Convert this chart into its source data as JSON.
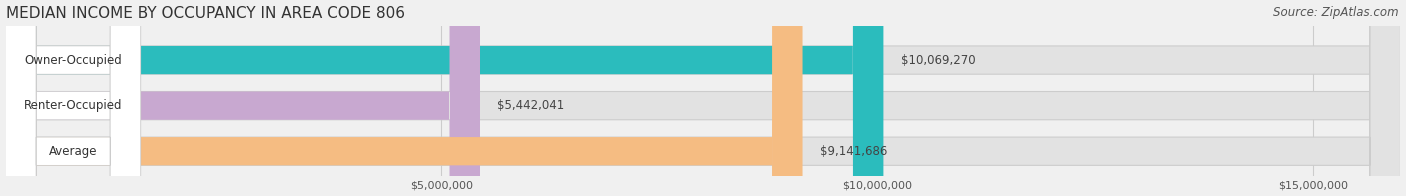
{
  "title": "MEDIAN INCOME BY OCCUPANCY IN AREA CODE 806",
  "source": "Source: ZipAtlas.com",
  "categories": [
    "Owner-Occupied",
    "Renter-Occupied",
    "Average"
  ],
  "values": [
    10069270,
    5442041,
    9141686
  ],
  "labels": [
    "$10,069,270",
    "$5,442,041",
    "$9,141,686"
  ],
  "bar_colors": [
    "#2bbcbd",
    "#c8a8d0",
    "#f5bc82"
  ],
  "xlim_max": 16000000,
  "xticks": [
    5000000,
    10000000,
    15000000
  ],
  "xtick_labels": [
    "$5,000,000",
    "$10,000,000",
    "$15,000,000"
  ],
  "background_color": "#f0f0f0",
  "bar_bg_color": "#e2e2e2",
  "bar_label_bg": "#ffffff",
  "title_fontsize": 11,
  "source_fontsize": 8.5,
  "label_fontsize": 8.5,
  "category_fontsize": 8.5,
  "bar_height": 0.62,
  "figsize": [
    14.06,
    1.96
  ],
  "dpi": 100
}
